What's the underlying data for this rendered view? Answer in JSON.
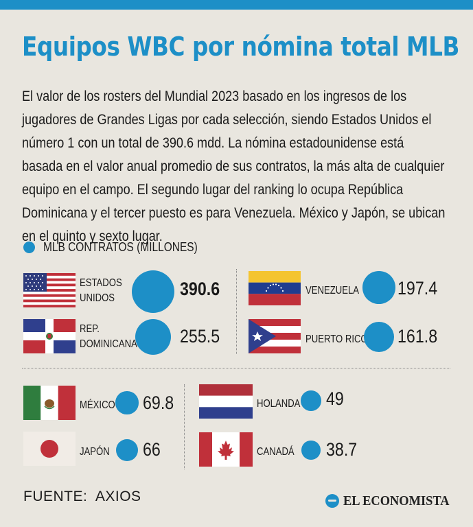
{
  "header": {
    "title": "Equipos WBC por nómina total MLB",
    "description": "El valor de los rosters del Mundial 2023 basado en los ingresos de los jugadores de Grandes Ligas por cada selección, siendo Estados Unidos el número 1 con un total de 390.6 mdd. La nómina estadounidense está basada en el valor anual promedio de sus contratos, la más alta de cualquier equipo en el campo. El segundo lugar del ranking lo ocupa República Dominicana y el tercer puesto es para Venezuela. México y Japón, se ubican en el quinto y sexto lugar."
  },
  "legend": {
    "label": "MLB CONTRATOS (MILLONES)"
  },
  "colors": {
    "accent": "#1d8fc7",
    "background": "#e9e6df"
  },
  "footer": {
    "source": "FUENTE:  AXIOS",
    "brand": "EL ECONOMISTA"
  },
  "chart_data": {
    "type": "bubble",
    "unit": "MLB CONTRATOS (MILLONES)",
    "teams": [
      {
        "label": "ESTADOS\nUNIDOS",
        "value": 390.6,
        "value_text": "390.6",
        "flag": "usa-flag-icon"
      },
      {
        "label": "REP.\nDOMINICANA",
        "value": 255.5,
        "value_text": "255.5",
        "flag": "dominican-republic-flag-icon"
      },
      {
        "label": "VENEZUELA",
        "value": 197.4,
        "value_text": "197.4",
        "flag": "venezuela-flag-icon"
      },
      {
        "label": "PUERTO  RICO",
        "value": 161.8,
        "value_text": "161.8",
        "flag": "puerto-rico-flag-icon"
      },
      {
        "label": "MÉXICO",
        "value": 69.8,
        "value_text": "69.8",
        "flag": "mexico-flag-icon"
      },
      {
        "label": "JAPÓN",
        "value": 66,
        "value_text": "66",
        "flag": "japan-flag-icon"
      },
      {
        "label": "HOLANDA",
        "value": 49,
        "value_text": "49",
        "flag": "netherlands-flag-icon"
      },
      {
        "label": "CANADÁ",
        "value": 38.7,
        "value_text": "38.7",
        "flag": "canada-flag-icon"
      }
    ]
  }
}
